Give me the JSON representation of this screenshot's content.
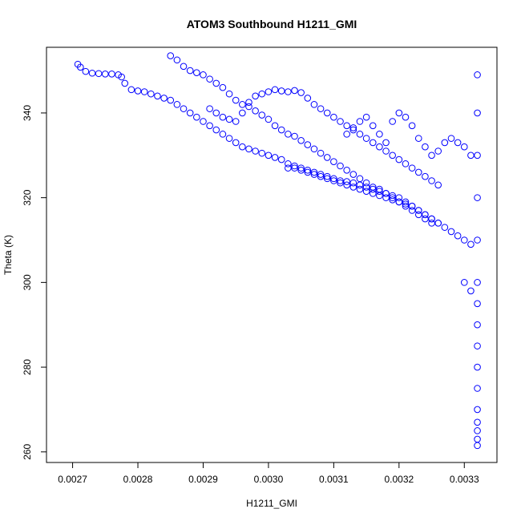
{
  "chart_data": {
    "type": "scatter",
    "title": "ATOM3 Southbound H1211_GMI",
    "xlabel": "H1211_GMI",
    "ylabel": "Theta (K)",
    "xlim": [
      0.00266,
      0.00335
    ],
    "ylim": [
      257.5,
      355.5
    ],
    "x_ticks": [
      0.0027,
      0.0028,
      0.0029,
      0.003,
      0.0031,
      0.0032,
      0.0033
    ],
    "x_tick_labels": [
      "0.0027",
      "0.0028",
      "0.0029",
      "0.0030",
      "0.0031",
      "0.0032",
      "0.0033"
    ],
    "y_ticks": [
      260,
      280,
      300,
      320,
      340
    ],
    "y_tick_labels": [
      "260",
      "280",
      "300",
      "320",
      "340"
    ],
    "grid": false,
    "legend": "none",
    "marker": "open-circle",
    "series_color": "#0000ff",
    "series": [
      {
        "x": [
          0.002708,
          0.002712,
          0.00272,
          0.00273,
          0.00274,
          0.00275,
          0.00276,
          0.00277,
          0.002775,
          0.00278,
          0.00279,
          0.0028,
          0.00281,
          0.00282,
          0.00283,
          0.00284,
          0.00285,
          0.00286,
          0.00287,
          0.00288,
          0.00289,
          0.0029,
          0.00291,
          0.00292,
          0.00293,
          0.00294,
          0.00295,
          0.00296,
          0.00297,
          0.00298,
          0.00299,
          0.003,
          0.00301,
          0.00302,
          0.00303,
          0.00304,
          0.00305,
          0.00306,
          0.00307,
          0.00308,
          0.00309,
          0.0031,
          0.00311,
          0.00312,
          0.00313,
          0.00314,
          0.00315,
          0.00316,
          0.00317,
          0.00318,
          0.00319,
          0.0032,
          0.00321,
          0.00322,
          0.00323,
          0.00324,
          0.00325
        ],
        "y": [
          351.5,
          350.8,
          349.8,
          349.4,
          349.3,
          349.2,
          349.2,
          349.0,
          348.5,
          347.0,
          345.5,
          345.2,
          345.0,
          344.5,
          344.0,
          343.5,
          343.0,
          342.0,
          341.0,
          340.0,
          339.0,
          338.0,
          337.0,
          336.0,
          335.0,
          334.0,
          333.0,
          332.0,
          331.5,
          331.0,
          330.5,
          330.0,
          329.5,
          329.0,
          328.0,
          327.0,
          326.5,
          326.0,
          325.5,
          325.0,
          324.5,
          324.0,
          323.5,
          323.0,
          322.5,
          322.0,
          321.5,
          321.0,
          320.5,
          320.0,
          319.5,
          319.0,
          318.0,
          317.0,
          316.0,
          315.0,
          314.0
        ]
      },
      {
        "x": [
          0.00285,
          0.00286,
          0.00287,
          0.00288,
          0.00289,
          0.0029,
          0.00291,
          0.00292,
          0.00293,
          0.00294,
          0.00295,
          0.00296,
          0.00297,
          0.00298,
          0.00299,
          0.003,
          0.00301,
          0.00302,
          0.00303,
          0.00304,
          0.00305,
          0.00306,
          0.00307,
          0.00308,
          0.00309,
          0.0031,
          0.00311,
          0.00312,
          0.00313,
          0.00314,
          0.00315,
          0.00316,
          0.00317,
          0.00318,
          0.00319,
          0.0032,
          0.00321,
          0.00322,
          0.00323,
          0.00324,
          0.00325,
          0.00326
        ],
        "y": [
          353.5,
          352.5,
          351.0,
          350.0,
          349.5,
          349.0,
          348.0,
          347.0,
          346.0,
          344.5,
          343.0,
          342.0,
          341.5,
          340.5,
          339.5,
          338.5,
          337.0,
          336.0,
          335.0,
          334.5,
          333.5,
          332.5,
          331.5,
          330.5,
          329.5,
          328.5,
          327.5,
          326.5,
          325.5,
          324.5,
          323.5,
          322.5,
          322.0,
          321.0,
          320.0,
          319.0,
          318.5,
          318.0,
          317.0,
          316.0,
          315.0,
          314.0
        ]
      },
      {
        "x": [
          0.00291,
          0.00292,
          0.00293,
          0.00294,
          0.00295,
          0.00296,
          0.00297,
          0.00298,
          0.00299,
          0.003,
          0.00301,
          0.00302,
          0.00303,
          0.00304,
          0.00305,
          0.00306,
          0.00307,
          0.00308,
          0.00309,
          0.0031,
          0.00311,
          0.00312,
          0.00313,
          0.00314,
          0.00315,
          0.00316,
          0.00317,
          0.00318,
          0.00319,
          0.0032,
          0.00321,
          0.00322,
          0.00323,
          0.00324,
          0.00325,
          0.00326
        ],
        "y": [
          341.0,
          340.0,
          339.0,
          338.5,
          338.0,
          340.0,
          342.5,
          344.0,
          344.5,
          345.0,
          345.5,
          345.2,
          345.0,
          345.3,
          344.8,
          343.5,
          342.0,
          341.0,
          340.0,
          339.0,
          338.0,
          337.0,
          336.0,
          335.0,
          334.0,
          333.0,
          332.0,
          331.0,
          330.0,
          329.0,
          328.0,
          327.0,
          326.0,
          325.0,
          324.0,
          323.0
        ]
      },
      {
        "x": [
          0.00303,
          0.00304,
          0.00305,
          0.00306,
          0.00307,
          0.00308,
          0.00309,
          0.0031,
          0.00311,
          0.00312,
          0.00313,
          0.00314,
          0.00315,
          0.00316,
          0.00317,
          0.00318,
          0.00319,
          0.0032,
          0.00321,
          0.00322,
          0.00323,
          0.00324,
          0.00325,
          0.00326,
          0.00327,
          0.00328,
          0.00329,
          0.0033,
          0.00331
        ],
        "y": [
          327.0,
          327.5,
          327.0,
          326.5,
          326.0,
          325.5,
          325.0,
          324.5,
          324.0,
          323.8,
          323.5,
          323.0,
          322.5,
          322.0,
          321.5,
          321.0,
          320.5,
          320.0,
          319.0,
          318.0,
          317.0,
          316.0,
          315.0,
          314.0,
          313.0,
          312.0,
          311.0,
          310.0,
          309.0
        ]
      },
      {
        "x": [
          0.00312,
          0.00313,
          0.00314,
          0.00315,
          0.00316,
          0.00317,
          0.00318,
          0.00319,
          0.0032,
          0.00321,
          0.00322,
          0.00323,
          0.00324,
          0.00325,
          0.00326,
          0.00327,
          0.00328,
          0.00329,
          0.0033,
          0.00331
        ],
        "y": [
          335.0,
          336.5,
          338.0,
          339.0,
          337.0,
          335.0,
          333.0,
          338.0,
          340.0,
          339.0,
          337.0,
          334.0,
          332.0,
          330.0,
          331.0,
          333.0,
          334.0,
          333.0,
          332.0,
          330.0
        ]
      },
      {
        "x": [
          0.0033,
          0.00331,
          0.00332,
          0.00332,
          0.00332,
          0.00332,
          0.00332,
          0.00332,
          0.00332,
          0.00332,
          0.00332,
          0.00332,
          0.00332,
          0.00332,
          0.00332,
          0.00332,
          0.00332,
          0.00332
        ],
        "y": [
          300.0,
          298.0,
          349.0,
          340.0,
          330.0,
          320.0,
          310.0,
          300.0,
          295.0,
          290.0,
          285.0,
          280.0,
          275.0,
          270.0,
          267.0,
          265.0,
          263.0,
          261.5
        ]
      }
    ]
  }
}
